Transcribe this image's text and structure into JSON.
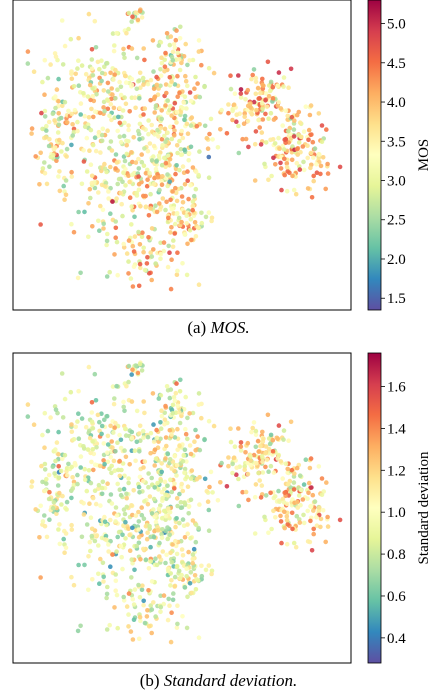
{
  "figure": {
    "caption_a_prefix": "(a) ",
    "caption_a_text": "MOS.",
    "caption_b_prefix": "(b) ",
    "caption_b_text": "Standard deviation."
  },
  "chart_data": [
    {
      "type": "scatter",
      "title": "",
      "xlabel": "",
      "ylabel": "",
      "colorbar": {
        "label": "MOS",
        "range": [
          1.35,
          5.3
        ],
        "ticks": [
          "1.5",
          "2.0",
          "2.5",
          "3.0",
          "3.5",
          "4.0",
          "4.5",
          "5.0"
        ],
        "colormap": "Spectral_r"
      },
      "axes_ticks_shown": false,
      "grid": false,
      "n_points_approx": 1200
    },
    {
      "type": "scatter",
      "title": "",
      "xlabel": "",
      "ylabel": "",
      "colorbar": {
        "label": "Standard deviation",
        "range": [
          0.28,
          1.76
        ],
        "ticks": [
          "0.4",
          "0.6",
          "0.8",
          "1.0",
          "1.2",
          "1.4",
          "1.6"
        ],
        "colormap": "Spectral_r"
      },
      "axes_ticks_shown": false,
      "grid": false,
      "n_points_approx": 1200
    }
  ]
}
